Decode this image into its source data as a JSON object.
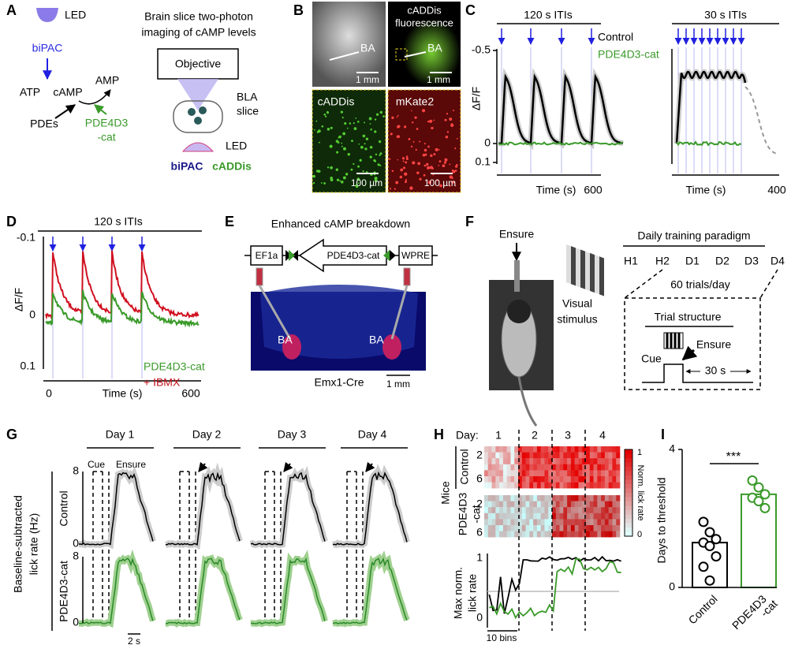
{
  "panels": {
    "A": {
      "label": "A",
      "led_top": "LED",
      "bipac": "biPAC",
      "atp": "ATP",
      "camp": "cAMP",
      "amp": "AMP",
      "pdes": "PDEs",
      "pde_lines": [
        "PDE4D3",
        "-cat"
      ],
      "title_lines": [
        "Brain slice two-photon",
        "imaging of cAMP levels"
      ],
      "objective": "Objective",
      "slice_lines": [
        "BLA",
        "slice"
      ],
      "led_bottom": "LED",
      "bipac_bottom": "biPAC",
      "caddis_bottom": "cADDis"
    },
    "B": {
      "label": "B",
      "ba_1": "BA",
      "scale_1": "1 mm",
      "fluor_lines": [
        "cADDis",
        "fluorescence"
      ],
      "ba_2": "BA",
      "scale_2": "1 mm",
      "caddis": "cADDis",
      "mkate": "mKate2",
      "scale_3": "100 µm",
      "scale_4": "100 µm"
    },
    "C": {
      "label": "C",
      "iti_left": "120 s ITIs",
      "iti_right": "30 s ITIs",
      "ytick_top": "-0.5",
      "ytick_zero": "0",
      "ytick_bottom": "0.1",
      "ylabel": "ΔF/F",
      "legend": [
        "Control",
        "PDE4D3-cat"
      ],
      "xlabel_left": "Time (s)",
      "xtick_left": "600",
      "xlabel_right": "Time (s)",
      "xtick_right": "400"
    },
    "D": {
      "label": "D",
      "iti": "120 s ITIs",
      "ytick_top": "-0.1",
      "ytick_zero": "0",
      "ytick_bottom": "0.1",
      "ylabel": "ΔF/F",
      "xtick_zero": "0",
      "xlabel": "Time (s)",
      "xtick_end": "600",
      "legend": [
        "PDE4D3-cat",
        "+ IBMX"
      ]
    },
    "E": {
      "label": "E",
      "title": "Enhanced cAMP breakdown",
      "ef1a": "EF1a",
      "pde": "PDE4D3-cat",
      "wpre": "WPRE",
      "ba_left": "BA",
      "ba_right": "BA",
      "scale": "1 mm",
      "mouse": "Emx1-Cre"
    },
    "F": {
      "label": "F",
      "ensure": "Ensure",
      "visual_lines": [
        "Visual",
        "stimulus"
      ],
      "paradigm": "Daily training paradigm",
      "days": [
        "H1",
        "H2",
        "D1",
        "D2",
        "D3",
        "D4"
      ],
      "trials": "60 trials/day",
      "trial_structure": "Trial structure",
      "cue": "Cue",
      "ensure_trial": "Ensure",
      "iti": "30 s"
    },
    "G": {
      "label": "G",
      "days": [
        "Day 1",
        "Day 2",
        "Day 3",
        "Day 4"
      ],
      "cue": "Cue",
      "ensure": "Ensure",
      "ylabel_lines": [
        "Baseline-subtracted",
        "lick rate (Hz)"
      ],
      "rows": [
        "Control",
        "PDE4D3-cat"
      ],
      "ytick_top_1": "8",
      "ytick_zero_1": "0",
      "ytick_top_2": "8",
      "ytick_zero_2": "0",
      "scale": "2 s"
    },
    "H": {
      "label": "H",
      "day": "Day:",
      "days": [
        "1",
        "2",
        "3",
        "4"
      ],
      "mice": "Mice",
      "control": "Control",
      "pde_lines": [
        "PDE4D3",
        "-cat"
      ],
      "rows_control": [
        "2",
        "6"
      ],
      "rows_pde": [
        "2",
        "6"
      ],
      "cbar_top": "1",
      "cbar_label": "Norm. lick rate",
      "cbar_bottom": "0",
      "ylabel_lines": [
        "Max norm.",
        "lick rate"
      ],
      "ytick_top": "1",
      "ytick_zero": "0",
      "scale": "10 bins"
    },
    "I": {
      "label": "I",
      "ylabel": "Days to threshold",
      "significance": "***",
      "ylim": [
        0,
        4
      ],
      "yticks": [
        0,
        4
      ],
      "bars": [
        {
          "label_lines": [
            "Control"
          ],
          "value": 1.3,
          "color": "#000000",
          "points": [
            1.9,
            1.6,
            1.4,
            1.3,
            1.2,
            0.9,
            0.6,
            0.2
          ]
        },
        {
          "label_lines": [
            "PDE4D3",
            "-cat"
          ],
          "value": 2.7,
          "color": "#3a9a2a",
          "points": [
            3.1,
            2.9,
            2.7,
            2.6,
            2.5,
            2.3
          ]
        }
      ]
    }
  }
}
